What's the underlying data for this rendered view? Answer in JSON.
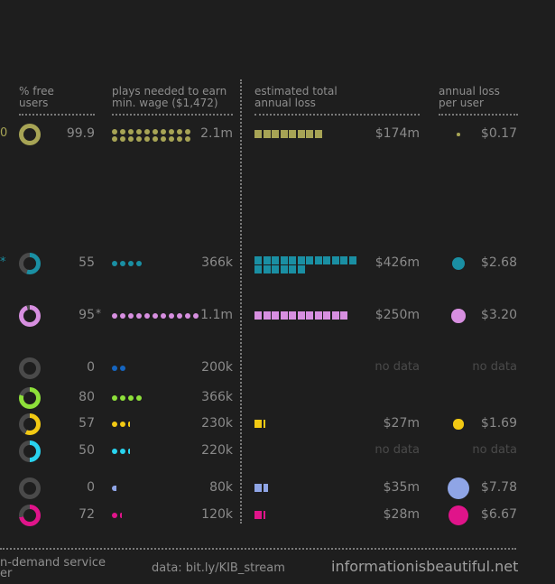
{
  "headers": {
    "pct_free": "% free\nusers",
    "plays": "plays needed to earn\nmin. wage ($1,472)",
    "total_loss": "estimated total\nannual loss",
    "per_user": "annual loss\nper user"
  },
  "rows": [
    {
      "edge": "0",
      "edge_color": "#a7a455",
      "pct": "99.9",
      "pct_value": 99.9,
      "ring_color": "#a7a455",
      "dot_color": "#a7a455",
      "dots": 20,
      "plays": "2.1m",
      "bar_color": "#a7a455",
      "squares": 8,
      "total": "$174m",
      "per_user": "$0.17",
      "per_user_value": 0.17,
      "per_user_color": "#a7a455"
    },
    {
      "edge": "*",
      "edge_color": "#1a8fa3",
      "pct": "55",
      "pct_value": 55,
      "ring_color": "#1a8fa3",
      "dot_color": "#1a8fa3",
      "dots": 4,
      "plays": "366k",
      "bar_color": "#1a8fa3",
      "squares": 18,
      "total": "$426m",
      "per_user": "$2.68",
      "per_user_value": 2.68,
      "per_user_color": "#1a8fa3"
    },
    {
      "edge": "",
      "edge_color": "#c77fd6",
      "pct": "95",
      "pct_marker": "*",
      "pct_value": 95,
      "ring_color": "#d78fe0",
      "dot_color": "#d78fe0",
      "dots": 11,
      "plays": "1.1m",
      "bar_color": "#d78fe0",
      "squares": 11,
      "total": "$250m",
      "per_user": "$3.20",
      "per_user_value": 3.2,
      "per_user_color": "#d78fe0"
    },
    {
      "edge": "",
      "pct": "0",
      "pct_value": 0,
      "ring_color": "#1565c0",
      "dot_color": "#1565c0",
      "dots": 2,
      "plays": "200k",
      "bar_color": "#1565c0",
      "squares": 0,
      "total": "no data",
      "per_user": "no data",
      "per_user_value": null,
      "per_user_color": "#1565c0"
    },
    {
      "edge": "",
      "pct": "80",
      "pct_value": 80,
      "ring_color": "#8ee03a",
      "dot_color": "#8ee03a",
      "dots": 4,
      "plays": "366k",
      "bar_color": "#8ee03a",
      "squares": 0,
      "total": "",
      "per_user": "",
      "per_user_value": null,
      "per_user_color": "#8ee03a"
    },
    {
      "edge": "",
      "pct": "57",
      "pct_value": 57,
      "ring_color": "#f2c913",
      "dot_color": "#f2c913",
      "dots": 2.3,
      "plays": "230k",
      "bar_color": "#f2c913",
      "squares": 1.2,
      "total": "$27m",
      "per_user": "$1.69",
      "per_user_value": 1.69,
      "per_user_color": "#f2c913"
    },
    {
      "edge": "",
      "pct": "50",
      "pct_value": 50,
      "ring_color": "#29d3ef",
      "dot_color": "#29d3ef",
      "dots": 2.2,
      "plays": "220k",
      "bar_color": "#29d3ef",
      "squares": 0,
      "total": "no data",
      "per_user": "no data",
      "per_user_value": null,
      "per_user_color": "#29d3ef"
    },
    {
      "edge": "",
      "pct": "0",
      "pct_value": 0,
      "ring_color": "#8fa5e6",
      "dot_color": "#8fa5e6",
      "dots": 0.8,
      "plays": "80k",
      "bar_color": "#8fa5e6",
      "squares": 1.6,
      "total": "$35m",
      "per_user": "$7.78",
      "per_user_value": 7.78,
      "per_user_color": "#8fa5e6"
    },
    {
      "edge": "",
      "pct": "72",
      "pct_value": 72,
      "ring_color": "#e0148a",
      "dot_color": "#e0148a",
      "dots": 1.2,
      "plays": "120k",
      "bar_color": "#e0148a",
      "squares": 1.1,
      "total": "$28m",
      "per_user": "$6.67",
      "per_user_value": 6.67,
      "per_user_color": "#e0148a"
    }
  ],
  "footer": {
    "left": "n-demand service\ner",
    "source": "data: bit.ly/KIB_stream",
    "brand": "informationisbeautiful.net"
  },
  "chart_data": {
    "type": "table",
    "columns": [
      "% free users",
      "plays needed to earn min. wage ($1,472)",
      "estimated total annual loss",
      "annual loss per user"
    ],
    "rows": [
      [
        "99.9",
        "2.1m",
        "$174m",
        "$0.17"
      ],
      [
        "55",
        "366k",
        "$426m",
        "$2.68"
      ],
      [
        "95*",
        "1.1m",
        "$250m",
        "$3.20"
      ],
      [
        "0",
        "200k",
        "no data",
        "no data"
      ],
      [
        "80",
        "366k",
        "",
        ""
      ],
      [
        "57",
        "230k",
        "$27m",
        "$1.69"
      ],
      [
        "50",
        "220k",
        "no data",
        "no data"
      ],
      [
        "0",
        "80k",
        "$35m",
        "$7.78"
      ],
      [
        "72",
        "120k",
        "$28m",
        "$6.67"
      ]
    ]
  }
}
